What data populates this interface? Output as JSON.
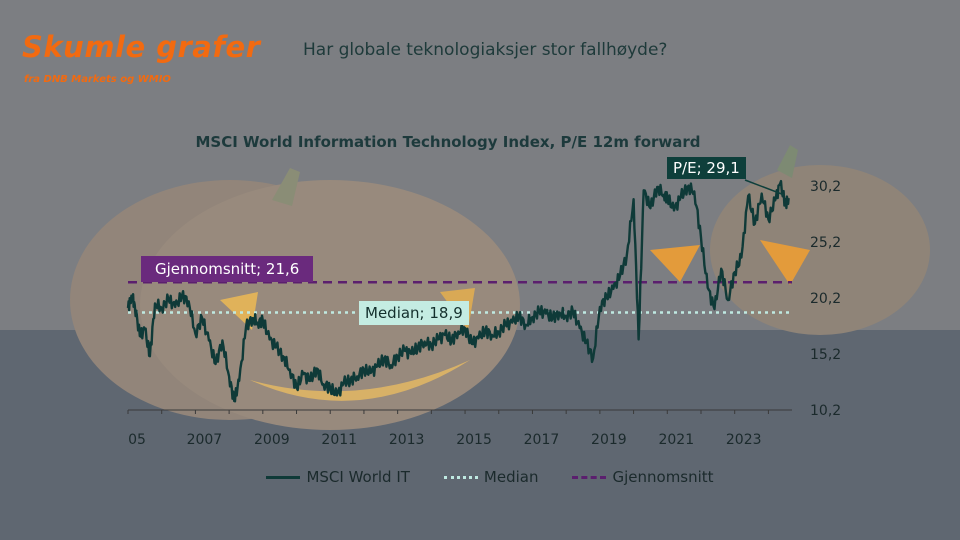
{
  "brand": {
    "title": "Skumle grafer",
    "subtitle": "fra DNB Markets og WMIO"
  },
  "headline": "Har globale teknologiaksjer stor fallhøyde?",
  "colors": {
    "accent_orange": "#f26a10",
    "series_line": "#0f3a38",
    "median_line": "#bfe9e1",
    "average_line": "#5b1f6e",
    "average_label_bg": "#6a2a7d",
    "median_label_bg": "#c4ece2",
    "pe_label_bg": "#0e3f3b"
  },
  "chart_data": {
    "type": "line",
    "title": "MSCI World Information Technology Index, P/E 12m forward",
    "xlabel": "",
    "ylabel": "",
    "x_ticks": [
      "05",
      "2007",
      "2009",
      "2011",
      "2013",
      "2015",
      "2017",
      "2019",
      "2021",
      "2023"
    ],
    "y_ticks": [
      "10,2",
      "15,2",
      "20,2",
      "25,2",
      "30,2"
    ],
    "ylim": [
      10.2,
      32.5
    ],
    "xlim": [
      2005.0,
      2024.7
    ],
    "grid": false,
    "legend_position": "bottom",
    "series": [
      {
        "name": "MSCI World IT",
        "x": [
          2005.0,
          2005.1,
          2005.2,
          2005.35,
          2005.5,
          2005.65,
          2005.8,
          2006.0,
          2006.2,
          2006.4,
          2006.6,
          2006.8,
          2007.0,
          2007.2,
          2007.4,
          2007.6,
          2007.8,
          2008.0,
          2008.15,
          2008.3,
          2008.5,
          2008.7,
          2008.85,
          2009.0,
          2009.2,
          2009.4,
          2009.6,
          2009.8,
          2010.0,
          2010.2,
          2010.4,
          2010.6,
          2010.8,
          2011.0,
          2011.2,
          2011.4,
          2011.6,
          2011.8,
          2012.0,
          2012.2,
          2012.4,
          2012.6,
          2012.8,
          2013.0,
          2013.2,
          2013.4,
          2013.6,
          2013.8,
          2014.0,
          2014.2,
          2014.4,
          2014.6,
          2014.8,
          2015.0,
          2015.2,
          2015.4,
          2015.6,
          2015.8,
          2016.0,
          2016.2,
          2016.4,
          2016.6,
          2016.8,
          2017.0,
          2017.2,
          2017.4,
          2017.6,
          2017.8,
          2018.0,
          2018.2,
          2018.4,
          2018.6,
          2018.8,
          2019.0,
          2019.2,
          2019.4,
          2019.6,
          2019.8,
          2020.0,
          2020.15,
          2020.3,
          2020.5,
          2020.7,
          2020.9,
          2021.0,
          2021.2,
          2021.4,
          2021.6,
          2021.8,
          2022.0,
          2022.2,
          2022.4,
          2022.6,
          2022.8,
          2023.0,
          2023.2,
          2023.4,
          2023.6,
          2023.8,
          2024.0,
          2024.2,
          2024.35,
          2024.5,
          2024.6
        ],
        "values": [
          19.3,
          20.4,
          19.6,
          16.8,
          17.4,
          15.0,
          19.7,
          19.3,
          20.1,
          19.4,
          20.4,
          19.9,
          17.0,
          18.4,
          16.4,
          14.3,
          16.4,
          13.2,
          11.0,
          12.8,
          17.6,
          18.4,
          18.0,
          18.2,
          16.5,
          15.8,
          15.0,
          13.8,
          12.2,
          13.4,
          12.8,
          13.9,
          12.5,
          12.2,
          11.5,
          12.6,
          12.9,
          13.2,
          13.8,
          13.5,
          14.1,
          14.8,
          14.2,
          15.0,
          15.5,
          15.2,
          15.8,
          16.3,
          16.0,
          16.5,
          16.9,
          16.4,
          17.2,
          17.5,
          16.1,
          16.6,
          17.3,
          16.9,
          17.2,
          17.8,
          18.0,
          18.6,
          17.8,
          18.5,
          19.0,
          18.8,
          18.4,
          18.9,
          18.6,
          19.0,
          17.5,
          16.2,
          14.8,
          19.4,
          20.3,
          21.0,
          22.2,
          24.0,
          29.0,
          16.5,
          29.8,
          28.2,
          30.1,
          29.4,
          29.2,
          28.0,
          29.2,
          30.1,
          29.7,
          25.6,
          21.1,
          19.2,
          22.8,
          20.0,
          22.5,
          23.8,
          29.3,
          26.8,
          29.5,
          27.2,
          28.9,
          30.4,
          28.6,
          29.1
        ]
      },
      {
        "name": "Median",
        "value": 18.9
      },
      {
        "name": "Gjennomsnitt",
        "value": 21.6
      }
    ],
    "annotations": [
      {
        "text": "Gjennomsnitt; 21,6"
      },
      {
        "text": "Median; 18,9"
      },
      {
        "text": "P/E; 29,1"
      }
    ]
  }
}
